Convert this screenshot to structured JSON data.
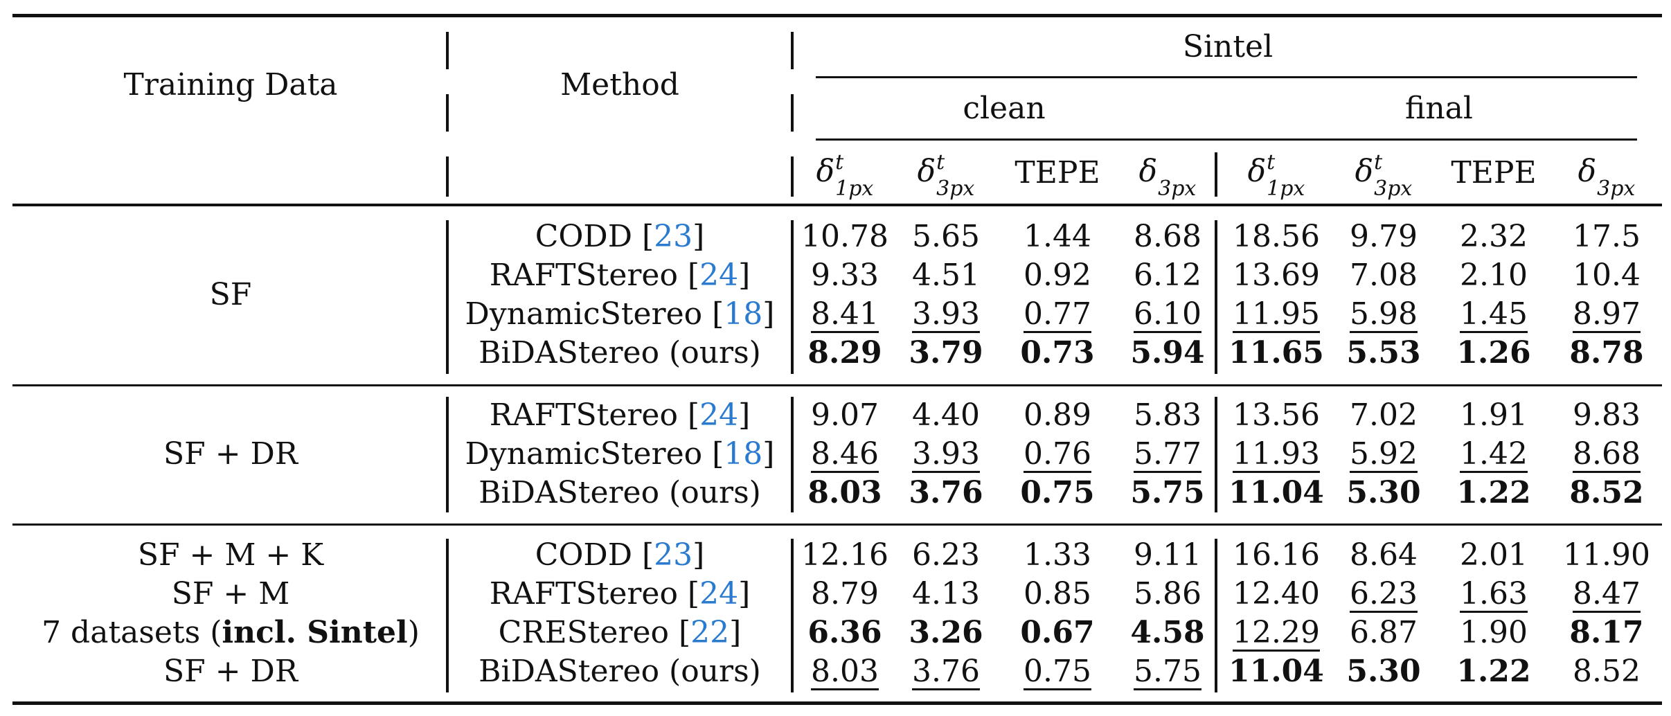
{
  "table": {
    "headers": {
      "training_data": "Training Data",
      "method": "Method",
      "dataset": "Sintel",
      "clean": "clean",
      "final": "final",
      "metrics": [
        {
          "base": "δ",
          "sup": "t",
          "sub": "1px"
        },
        {
          "base": "δ",
          "sup": "t",
          "sub": "3px"
        },
        {
          "base": "TEPE",
          "sup": "",
          "sub": ""
        },
        {
          "base": "δ",
          "sup": "",
          "sub": "3px"
        },
        {
          "base": "δ",
          "sup": "t",
          "sub": "1px"
        },
        {
          "base": "δ",
          "sup": "t",
          "sub": "3px"
        },
        {
          "base": "TEPE",
          "sup": "",
          "sub": ""
        },
        {
          "base": "δ",
          "sup": "",
          "sub": "3px"
        }
      ]
    },
    "groups": [
      {
        "training": [
          "SF"
        ],
        "rows": [
          {
            "method": "CODD",
            "cite": "23",
            "values": [
              "10.78",
              "5.65",
              "1.44",
              "8.68",
              "18.56",
              "9.79",
              "2.32",
              "17.5"
            ],
            "bold": [
              0,
              0,
              0,
              0,
              0,
              0,
              0,
              0
            ],
            "underline": [
              0,
              0,
              0,
              0,
              0,
              0,
              0,
              0
            ]
          },
          {
            "method": "RAFTStereo",
            "cite": "24",
            "values": [
              "9.33",
              "4.51",
              "0.92",
              "6.12",
              "13.69",
              "7.08",
              "2.10",
              "10.4"
            ],
            "bold": [
              0,
              0,
              0,
              0,
              0,
              0,
              0,
              0
            ],
            "underline": [
              0,
              0,
              0,
              0,
              0,
              0,
              0,
              0
            ]
          },
          {
            "method": "DynamicStereo",
            "cite": "18",
            "values": [
              "8.41",
              "3.93",
              "0.77",
              "6.10",
              "11.95",
              "5.98",
              "1.45",
              "8.97"
            ],
            "bold": [
              0,
              0,
              0,
              0,
              0,
              0,
              0,
              0
            ],
            "underline": [
              1,
              1,
              1,
              1,
              1,
              1,
              1,
              1
            ]
          },
          {
            "method": "BiDAStereo (ours)",
            "cite": "",
            "values": [
              "8.29",
              "3.79",
              "0.73",
              "5.94",
              "11.65",
              "5.53",
              "1.26",
              "8.78"
            ],
            "bold": [
              1,
              1,
              1,
              1,
              1,
              1,
              1,
              1
            ],
            "underline": [
              0,
              0,
              0,
              0,
              0,
              0,
              0,
              0
            ]
          }
        ]
      },
      {
        "training": [
          "SF + DR"
        ],
        "rows": [
          {
            "method": "RAFTStereo",
            "cite": "24",
            "values": [
              "9.07",
              "4.40",
              "0.89",
              "5.83",
              "13.56",
              "7.02",
              "1.91",
              "9.83"
            ],
            "bold": [
              0,
              0,
              0,
              0,
              0,
              0,
              0,
              0
            ],
            "underline": [
              0,
              0,
              0,
              0,
              0,
              0,
              0,
              0
            ]
          },
          {
            "method": "DynamicStereo",
            "cite": "18",
            "values": [
              "8.46",
              "3.93",
              "0.76",
              "5.77",
              "11.93",
              "5.92",
              "1.42",
              "8.68"
            ],
            "bold": [
              0,
              0,
              0,
              0,
              0,
              0,
              0,
              0
            ],
            "underline": [
              1,
              1,
              1,
              1,
              1,
              1,
              1,
              1
            ]
          },
          {
            "method": "BiDAStereo (ours)",
            "cite": "",
            "values": [
              "8.03",
              "3.76",
              "0.75",
              "5.75",
              "11.04",
              "5.30",
              "1.22",
              "8.52"
            ],
            "bold": [
              1,
              1,
              1,
              1,
              1,
              1,
              1,
              1
            ],
            "underline": [
              0,
              0,
              0,
              0,
              0,
              0,
              0,
              0
            ]
          }
        ]
      },
      {
        "training": [
          "SF + M + K",
          "SF + M",
          "7 datasets (incl. Sintel)",
          "SF + DR"
        ],
        "rows": [
          {
            "method": "CODD",
            "cite": "23",
            "values": [
              "12.16",
              "6.23",
              "1.33",
              "9.11",
              "16.16",
              "8.64",
              "2.01",
              "11.90"
            ],
            "bold": [
              0,
              0,
              0,
              0,
              0,
              0,
              0,
              0
            ],
            "underline": [
              0,
              0,
              0,
              0,
              0,
              0,
              0,
              0
            ]
          },
          {
            "method": "RAFTStereo",
            "cite": "24",
            "values": [
              "8.79",
              "4.13",
              "0.85",
              "5.86",
              "12.40",
              "6.23",
              "1.63",
              "8.47"
            ],
            "bold": [
              0,
              0,
              0,
              0,
              0,
              0,
              0,
              0
            ],
            "underline": [
              0,
              0,
              0,
              0,
              0,
              1,
              1,
              1
            ]
          },
          {
            "method": "CREStereo",
            "cite": "22",
            "values": [
              "6.36",
              "3.26",
              "0.67",
              "4.58",
              "12.29",
              "6.87",
              "1.90",
              "8.17"
            ],
            "bold": [
              1,
              1,
              1,
              1,
              0,
              0,
              0,
              1
            ],
            "underline": [
              0,
              0,
              0,
              0,
              1,
              0,
              0,
              0
            ]
          },
          {
            "method": "BiDAStereo (ours)",
            "cite": "",
            "values": [
              "8.03",
              "3.76",
              "0.75",
              "5.75",
              "11.04",
              "5.30",
              "1.22",
              "8.52"
            ],
            "bold": [
              0,
              0,
              0,
              0,
              1,
              1,
              1,
              0
            ],
            "underline": [
              1,
              1,
              1,
              1,
              0,
              0,
              0,
              0
            ]
          }
        ]
      }
    ]
  },
  "colors": {
    "text": "#111111",
    "citation": "#2a7bd0"
  }
}
